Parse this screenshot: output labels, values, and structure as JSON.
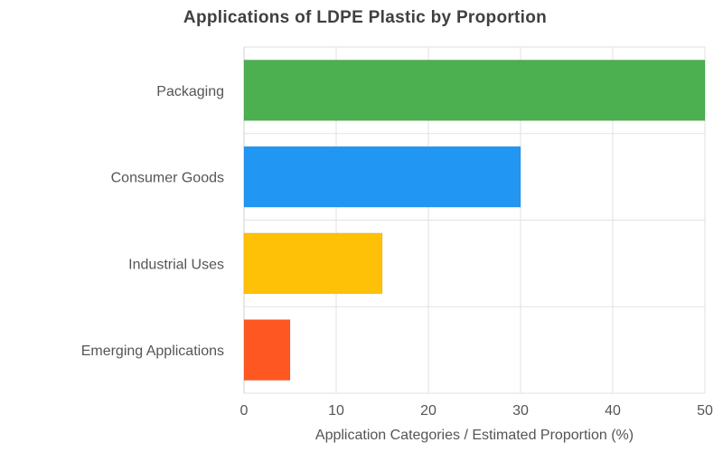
{
  "chart_data": {
    "type": "bar",
    "orientation": "horizontal",
    "title": "Applications of LDPE Plastic by Proportion",
    "xlabel": "Application Categories / Estimated Proportion (%)",
    "ylabel": "",
    "categories": [
      "Packaging",
      "Consumer Goods",
      "Industrial Uses",
      "Emerging Applications"
    ],
    "values": [
      50,
      30,
      15,
      5
    ],
    "colors": [
      "#4caf50",
      "#2196f3",
      "#ffc107",
      "#ff5722"
    ],
    "xlim": [
      0,
      50
    ],
    "xticks": [
      0,
      10,
      20,
      30,
      40,
      50
    ],
    "grid": true,
    "legend": "none"
  }
}
